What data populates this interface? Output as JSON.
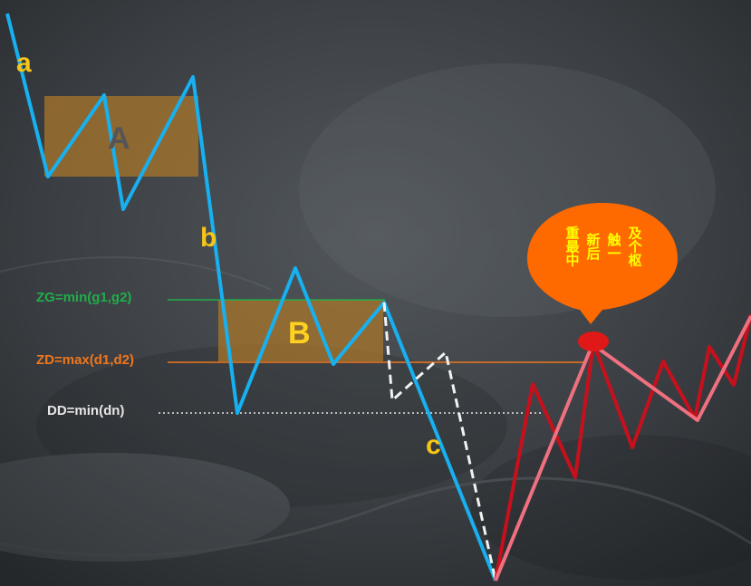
{
  "wave_labels": {
    "a": "a",
    "b": "b",
    "c": "c"
  },
  "zone_labels": {
    "A": "A",
    "B": "B"
  },
  "levels": {
    "zg": {
      "label": "ZG=min(g1,g2)",
      "color": "#1fae4a"
    },
    "zd": {
      "label": "ZD=max(d1,d2)",
      "color": "#f0761c"
    },
    "dd": {
      "label": "DD=min(dn)",
      "color": "#e6e6e6"
    }
  },
  "callout": {
    "columns": [
      "重最中",
      "新后",
      "触一",
      "及个枢"
    ],
    "fill": "#ff6a00",
    "text_color": "#ffff00"
  },
  "colors": {
    "down_line": "#17b0f0",
    "zone_fill": "#a8752a",
    "zone_label_A": "#555555",
    "zone_label_B": "#ffd21f",
    "wave_label": "#f5c518",
    "red_path": "#c8101c",
    "pink_path": "#f07080",
    "alt_path": "#f2f2f2",
    "touch_dot": "#e01818"
  }
}
